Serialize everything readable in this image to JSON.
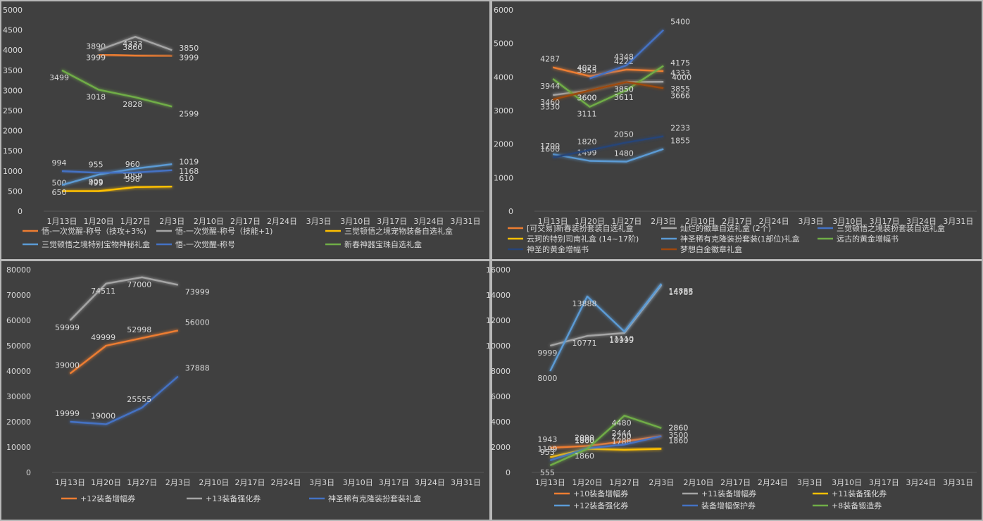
{
  "categories": [
    "1月13日",
    "1月20日",
    "1月27日",
    "2月3日",
    "2月10日",
    "2月17日",
    "2月24日",
    "3月3日",
    "3月10日",
    "3月17日",
    "3月24日",
    "3月31日"
  ],
  "chart_data": [
    {
      "type": "line",
      "ylim": [
        0,
        5000
      ],
      "yticks": [
        0,
        500,
        1000,
        1500,
        2000,
        2500,
        3000,
        3500,
        4000,
        4500,
        5000
      ],
      "grid": false,
      "legend_position": "bottom",
      "series": [
        {
          "name": "悟-一次觉醒-称号（技攻+3%)",
          "color": "#ed7d31",
          "values": [
            null,
            3890,
            3860,
            3850
          ]
        },
        {
          "name": "悟-一次觉醒-称号（技能+1)",
          "color": "#a5a5a5",
          "values": [
            null,
            3999,
            4333,
            3999
          ]
        },
        {
          "name": "三觉顿悟之境宠物装备自选礼盒",
          "color": "#ffc000",
          "values": [
            500,
            499,
            598,
            610
          ]
        },
        {
          "name": "三觉顿悟之境特别宝物神秘礼盒",
          "color": "#5b9bd5",
          "values": [
            650,
            909,
            1059,
            1168
          ]
        },
        {
          "name": "悟-一次觉醒-称号",
          "color": "#4472c4",
          "values": [
            994,
            955,
            960,
            1019
          ]
        },
        {
          "name": "新春神器宝珠自选礼盒",
          "color": "#70ad47",
          "values": [
            3499,
            3018,
            2828,
            2599
          ]
        }
      ]
    },
    {
      "type": "line",
      "ylim": [
        0,
        6000
      ],
      "yticks": [
        0,
        1000,
        2000,
        3000,
        4000,
        5000,
        6000
      ],
      "grid": false,
      "legend_position": "bottom",
      "series": [
        {
          "name": "[可交易]新春装扮套装自选礼盒",
          "color": "#ed7d31",
          "values": [
            4287,
            4023,
            4222,
            4175
          ]
        },
        {
          "name": "灿烂的徽章自选礼盒 (2个)",
          "color": "#a5a5a5",
          "values": [
            3460,
            3600,
            3850,
            3855
          ]
        },
        {
          "name": "三觉顿悟之境装扮套装自选礼盒",
          "color": "#4472c4",
          "values": [
            null,
            3955,
            4348,
            5400
          ]
        },
        {
          "name": "云珂的特别司南礼盒 (14~17阶)",
          "color": "#ffc000",
          "values": [
            null,
            null,
            null,
            null
          ]
        },
        {
          "name": "神圣稀有克隆装扮套装(1部位)礼盒",
          "color": "#5b9bd5",
          "values": [
            1700,
            1499,
            1480,
            1855
          ]
        },
        {
          "name": "远古的黄金增幅书",
          "color": "#70ad47",
          "values": [
            3944,
            3111,
            3611,
            4333
          ]
        },
        {
          "name": "神圣的黄金增幅书",
          "color": "#264478",
          "values": [
            1600,
            1820,
            2050,
            2233
          ]
        },
        {
          "name": "梦想白金徽章礼盒",
          "color": "#9e480e",
          "values": [
            3330,
            3600,
            3850,
            3666
          ]
        }
      ],
      "extra_labels": [
        "4000"
      ]
    },
    {
      "type": "line",
      "ylim": [
        0,
        80000
      ],
      "yticks": [
        0,
        10000,
        20000,
        30000,
        40000,
        50000,
        60000,
        70000,
        80000
      ],
      "grid": false,
      "legend_position": "bottom",
      "series": [
        {
          "name": "+12装备增幅券",
          "color": "#ed7d31",
          "values": [
            39000,
            49999,
            52998,
            56000
          ]
        },
        {
          "name": "+13装备强化券",
          "color": "#a5a5a5",
          "values": [
            59999,
            74511,
            77000,
            73999
          ]
        },
        {
          "name": "神圣稀有克隆装扮套装礼盒",
          "color": "#4472c4",
          "values": [
            19999,
            19000,
            25555,
            37888
          ]
        }
      ]
    },
    {
      "type": "line",
      "ylim": [
        0,
        16000
      ],
      "yticks": [
        0,
        2000,
        4000,
        6000,
        8000,
        10000,
        12000,
        14000,
        16000
      ],
      "grid": false,
      "legend_position": "bottom",
      "series": [
        {
          "name": "+10装备增幅券",
          "color": "#ed7d31",
          "values": [
            1943,
            2090,
            2444,
            2860
          ]
        },
        {
          "name": "+11装备增幅券",
          "color": "#a5a5a5",
          "values": [
            9999,
            10771,
            10999,
            14785
          ]
        },
        {
          "name": "+11装备强化券",
          "color": "#ffc000",
          "values": [
            1199,
            1860,
            1788,
            1860
          ]
        },
        {
          "name": "+12装备强化券",
          "color": "#5b9bd5",
          "values": [
            8000,
            13888,
            11110,
            14888
          ]
        },
        {
          "name": "装备增幅保护券",
          "color": "#4472c4",
          "values": [
            953,
            1900,
            2200,
            2860
          ]
        },
        {
          "name": "+8装备锻造券",
          "color": "#70ad47",
          "values": [
            555,
            1860,
            4480,
            3500
          ]
        }
      ]
    }
  ]
}
